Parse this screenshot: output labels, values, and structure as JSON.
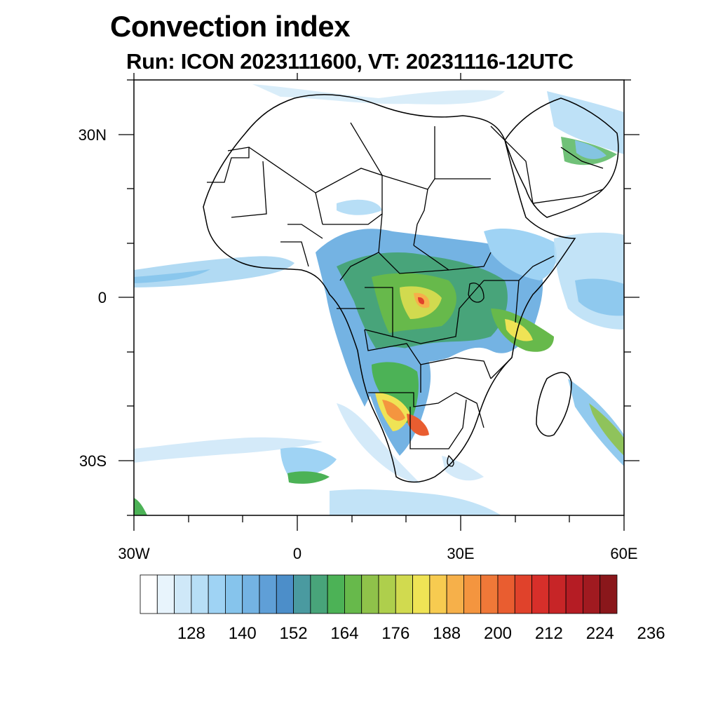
{
  "title": "Convection index",
  "subtitle": "Run: ICON 2023111600,  VT: 20231116-12UTC",
  "map": {
    "lon_range": [
      -30,
      60
    ],
    "lat_range": [
      -40,
      40
    ],
    "x_tick_labels": [
      "30W",
      "0",
      "30E",
      "60E"
    ],
    "y_tick_labels": [
      "30N",
      "0",
      "30S"
    ]
  },
  "colorbar": {
    "labels": [
      "128",
      "140",
      "152",
      "164",
      "176",
      "188",
      "200",
      "212",
      "224",
      "236"
    ],
    "colors": [
      "#ffffff",
      "#e8f4fc",
      "#cfe8f8",
      "#b7def6",
      "#9fd3f4",
      "#86c4ec",
      "#74b3e3",
      "#5f9fd7",
      "#4c8ec9",
      "#4a9aa0",
      "#48a47a",
      "#4cb256",
      "#67b94b",
      "#8fc24a",
      "#aecf4c",
      "#d1da4f",
      "#efe355",
      "#f7cb50",
      "#f6b04a",
      "#f4953f",
      "#ef7838",
      "#e95d30",
      "#e0422b",
      "#d72f2a",
      "#c72527",
      "#b51c24",
      "#a01a20",
      "#8a171b"
    ]
  }
}
